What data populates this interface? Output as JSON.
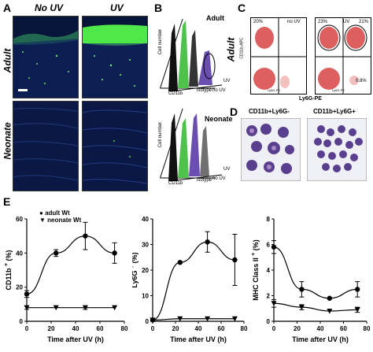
{
  "panel_labels": {
    "A": "A",
    "B": "B",
    "C": "C",
    "D": "D",
    "E": "E"
  },
  "panelA": {
    "col_no_uv": "No UV",
    "col_uv": "UV",
    "row_adult": "Adult",
    "row_neonate": "Neonate"
  },
  "panelB": {
    "adult_title": "Adult",
    "neonate_title": "Neonate",
    "ylabel": "Cell number",
    "xlabel": "CD11b",
    "isotype": "isotype",
    "no_uv": "no UV",
    "uv": "UV"
  },
  "panelC": {
    "row_label": "Adult",
    "no_uv": "no UV",
    "uv": "UV",
    "xlabel": "Ly6G-PE",
    "ylabel": "CD11b-APC",
    "inner_xlabel": "Ly6G-PE",
    "inner_ylabel": "CD11b-APC",
    "q_no_uv_ul": "20%",
    "q_uv_ul": "23%",
    "q_uv_ur": "21%",
    "q_uv_lr": "0.8%"
  },
  "panelD": {
    "left_label": "CD11b+Ly6G-",
    "right_label": "CD11b+Ly6G+"
  },
  "panelE": {
    "legend_adult": "adult Wt",
    "legend_neonate": "neonate Wt",
    "xlabel": "Time after UV (h)",
    "charts": [
      {
        "ylabel": "CD11b",
        "ylabel_sup": "+",
        "ylabel_unit": "(%)",
        "yticks": [
          "0",
          "20",
          "40",
          "60"
        ],
        "xticks": [
          "0",
          "20",
          "40",
          "60",
          "80"
        ]
      },
      {
        "ylabel": "Ly6G",
        "ylabel_sup": "+",
        "ylabel_unit": "(%)",
        "yticks": [
          "0",
          "10",
          "20",
          "30",
          "40"
        ],
        "xticks": [
          "0",
          "20",
          "40",
          "60",
          "80"
        ]
      },
      {
        "ylabel": "MHC Class II",
        "ylabel_sup": "+",
        "ylabel_unit": "(%)",
        "yticks": [
          "0",
          "2",
          "4",
          "6",
          "8"
        ],
        "xticks": [
          "0",
          "20",
          "40",
          "60",
          "80"
        ]
      }
    ]
  },
  "chart_data": [
    {
      "type": "line",
      "xlabel": "Time after UV (h)",
      "ylabel": "CD11b+ (%)",
      "xlim": [
        0,
        80
      ],
      "ylim": [
        0,
        60
      ],
      "series": [
        {
          "name": "adult Wt",
          "marker": "circle",
          "x": [
            0,
            24,
            48,
            72
          ],
          "y": [
            16,
            40,
            50,
            40
          ],
          "err": [
            2,
            2,
            8,
            6
          ]
        },
        {
          "name": "neonate Wt",
          "marker": "triangle",
          "x": [
            0,
            24,
            48,
            72
          ],
          "y": [
            8,
            8,
            8,
            8
          ],
          "err": [
            1,
            0,
            1,
            0
          ]
        }
      ]
    },
    {
      "type": "line",
      "xlabel": "Time after UV (h)",
      "ylabel": "Ly6G+ (%)",
      "xlim": [
        0,
        80
      ],
      "ylim": [
        0,
        40
      ],
      "series": [
        {
          "name": "adult Wt",
          "marker": "circle",
          "x": [
            0,
            24,
            48,
            72
          ],
          "y": [
            0.5,
            23,
            31,
            24
          ],
          "err": [
            0.5,
            0,
            4,
            10
          ]
        },
        {
          "name": "neonate Wt",
          "marker": "triangle",
          "x": [
            0,
            24,
            48,
            72
          ],
          "y": [
            0.5,
            1,
            1,
            1
          ],
          "err": [
            0,
            0,
            0,
            0
          ]
        }
      ]
    },
    {
      "type": "line",
      "xlabel": "Time after UV (h)",
      "ylabel": "MHC Class II+ (%)",
      "xlim": [
        0,
        80
      ],
      "ylim": [
        0,
        8
      ],
      "series": [
        {
          "name": "adult Wt",
          "marker": "circle",
          "x": [
            0,
            24,
            48,
            72
          ],
          "y": [
            5.8,
            2.5,
            1.8,
            2.5
          ],
          "err": [
            0.5,
            0.6,
            0,
            0.6
          ]
        },
        {
          "name": "neonate Wt",
          "marker": "triangle",
          "x": [
            0,
            24,
            48,
            72
          ],
          "y": [
            1.4,
            1.1,
            0.8,
            0.9
          ],
          "err": [
            0.3,
            0.2,
            0,
            0.2
          ]
        }
      ]
    }
  ],
  "colors": {
    "uv_green": "#4ec24a",
    "isotype_black": "#111111",
    "uv_purple": "#6a4fb0",
    "flow_red": "#d42a2a",
    "stain_purple": "#5a3f8f",
    "micro_blue": "#0c1a45",
    "micro_green": "#7cf27a"
  }
}
